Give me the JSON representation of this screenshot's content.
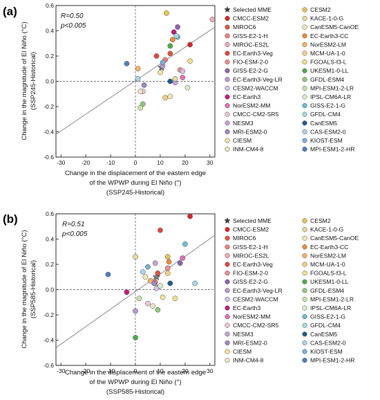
{
  "models": [
    {
      "name": "Selected MME",
      "color": "#3b3b3b",
      "marker": "star"
    },
    {
      "name": "CMCC-ESM2",
      "color": "#d62728"
    },
    {
      "name": "MIROC6",
      "color": "#e0553b"
    },
    {
      "name": "GISS-E2-1-H",
      "color": "#ef7f7f"
    },
    {
      "name": "MIROC-ES2L",
      "color": "#f6a8b8"
    },
    {
      "name": "EC-Earth3-Veg",
      "color": "#e9463f"
    },
    {
      "name": "FIO-ESM-2-0",
      "color": "#f28c8c"
    },
    {
      "name": "GISS-E2-2-G",
      "color": "#8e63b5"
    },
    {
      "name": "EC-Earth3-Veg-LR",
      "color": "#b99ad6"
    },
    {
      "name": "CESM2-WACCM",
      "color": "#d4c3ea"
    },
    {
      "name": "EC-Earth3",
      "color": "#c21b76"
    },
    {
      "name": "NorESM2-MM",
      "color": "#e46fb3"
    },
    {
      "name": "CMCC-CM2-SR5",
      "color": "#f4c2dc"
    },
    {
      "name": "NESM3",
      "color": "#c8a2d8"
    },
    {
      "name": "MRI-ESM2-0",
      "color": "#9f87c8"
    },
    {
      "name": "CIESM",
      "color": "#f7e3a1"
    },
    {
      "name": "INM-CM4-8",
      "color": "#ece6c8"
    },
    {
      "name": "CESM2",
      "color": "#e8c35a"
    },
    {
      "name": "KACE-1-0-G",
      "color": "#eadb9a"
    },
    {
      "name": "CanESM5-CanOE",
      "color": "#f2e9b6"
    },
    {
      "name": "EC-Earth3-CC",
      "color": "#f08c3c"
    },
    {
      "name": "NorESM2-LM",
      "color": "#f5b36b"
    },
    {
      "name": "MCM-UA-1-0",
      "color": "#f7cf8a"
    },
    {
      "name": "FGOALS-f3-L",
      "color": "#f5e08c"
    },
    {
      "name": "UKESM1-0-LL",
      "color": "#4cae4c"
    },
    {
      "name": "GFDL-ESM4",
      "color": "#8fc97a"
    },
    {
      "name": "MPI-ESM1-2-LR",
      "color": "#c3e6a8"
    },
    {
      "name": "IPSL-CM6A-LR",
      "color": "#d8efc8"
    },
    {
      "name": "GISS-E2-1-G",
      "color": "#6fbfd1"
    },
    {
      "name": "GFDL-CM4",
      "color": "#a6d9e6"
    },
    {
      "name": "CanESM5",
      "color": "#1f5c8c"
    },
    {
      "name": "CAS-ESM2-0",
      "color": "#b0d3ec"
    },
    {
      "name": "KIOST-ESM",
      "color": "#7eaedb"
    },
    {
      "name": "MPI-ESM1-2-HR",
      "color": "#4f7fc0"
    }
  ],
  "panels": [
    {
      "tag": "(a)",
      "r_text": "R=0.50",
      "p_text": "p<0.005",
      "ylabel": "Change in the magnitude of El Niño (°C)",
      "ylabel2": "(SSP245-Historical)",
      "xlabel1": "Change in the displacement of the eastern edge",
      "xlabel2": "of the WPWP during El Niño (°)",
      "xlabel3": "(SSP245-Historical)"
    },
    {
      "tag": "(b)",
      "r_text": "R=0.51",
      "p_text": "p<0.005",
      "ylabel": "Change in the magnitude of El Niño (°C)",
      "ylabel2": "(SSP585-Historical)",
      "xlabel1": "Change in the displacement of the eastern edge",
      "xlabel2": "of the WPWP during El Niño (°)",
      "xlabel3": "(SSP585-Historical)"
    }
  ],
  "chart_data": [
    {
      "type": "scatter",
      "title": "(a)",
      "xlabel": "Change in the displacement of the eastern edge of the WPWP during El Niño (°) (SSP245-Historical)",
      "ylabel": "Change in the magnitude of El Niño (°C) (SSP245-Historical)",
      "xlim": [
        -32,
        32
      ],
      "ylim": [
        -0.6,
        0.6
      ],
      "xticks": [
        -30,
        -20,
        -10,
        0,
        10,
        20,
        30
      ],
      "yticks": [
        -0.6,
        -0.4,
        -0.2,
        0,
        0.2,
        0.4,
        0.6
      ],
      "reference_lines": {
        "x": 0,
        "y": 0,
        "style": "dashed"
      },
      "fit_line": {
        "x": [
          -32,
          32
        ],
        "y": [
          -0.42,
          0.43
        ]
      },
      "annotations": [
        "R=0.50",
        "p<0.005"
      ],
      "series": [
        {
          "name": "Selected MME",
          "x": [
            10.5
          ],
          "y": [
            0.11
          ]
        },
        {
          "name": "CMCC-ESM2",
          "x": [
            22
          ],
          "y": [
            0.29
          ]
        },
        {
          "name": "MIROC6",
          "x": [
            14
          ],
          "y": [
            0.22
          ]
        },
        {
          "name": "GISS-E2-1-H",
          "x": [
            12
          ],
          "y": [
            0.17
          ]
        },
        {
          "name": "MIROC-ES2L",
          "x": [
            31
          ],
          "y": [
            0.49
          ]
        },
        {
          "name": "EC-Earth3-Veg",
          "x": [
            8.5
          ],
          "y": [
            0.2
          ]
        },
        {
          "name": "FIO-ESM-2-0",
          "x": [
            18
          ],
          "y": [
            0.09
          ]
        },
        {
          "name": "GISS-E2-2-G",
          "x": [
            17
          ],
          "y": [
            0.43
          ]
        },
        {
          "name": "EC-Earth3-Veg-LR",
          "x": [
            11
          ],
          "y": [
            0.12
          ]
        },
        {
          "name": "CESM2-WACCM",
          "x": [
            19
          ],
          "y": [
            0.08
          ]
        },
        {
          "name": "EC-Earth3",
          "x": [
            15.5
          ],
          "y": [
            0.39
          ]
        },
        {
          "name": "NorESM2-MM",
          "x": [
            19
          ],
          "y": [
            0.03
          ]
        },
        {
          "name": "CMCC-CM2-SR5",
          "x": [
            3
          ],
          "y": [
            -0.08
          ]
        },
        {
          "name": "NESM3",
          "x": [
            16
          ],
          "y": [
            -0.01
          ]
        },
        {
          "name": "MRI-ESM2-0",
          "x": [
            3.5
          ],
          "y": [
            -0.03
          ]
        },
        {
          "name": "CIESM",
          "x": [
            10
          ],
          "y": [
            0.07
          ]
        },
        {
          "name": "INM-CM4-8",
          "x": [
            2
          ],
          "y": [
            -0.08
          ]
        },
        {
          "name": "CESM2",
          "x": [
            12.5
          ],
          "y": [
            0.54
          ]
        },
        {
          "name": "KACE-1-0-G",
          "x": [
            16
          ],
          "y": [
            0.02
          ]
        },
        {
          "name": "CanESM5-CanOE",
          "x": [
            14
          ],
          "y": [
            -0.12
          ]
        },
        {
          "name": "EC-Earth3-CC",
          "x": [
            15
          ],
          "y": [
            0.33
          ]
        },
        {
          "name": "NorESM2-LM",
          "x": [
            1
          ],
          "y": [
            0.1
          ]
        },
        {
          "name": "MCM-UA-1-0",
          "x": [
            12
          ],
          "y": [
            -0.13
          ]
        },
        {
          "name": "FGOALS-f3-L",
          "x": [
            22
          ],
          "y": [
            0.16
          ]
        },
        {
          "name": "UKESM1-0-LL",
          "x": [
            14
          ],
          "y": [
            0.28
          ]
        },
        {
          "name": "GFDL-ESM4",
          "x": [
            3
          ],
          "y": [
            -0.18
          ]
        },
        {
          "name": "MPI-ESM1-2-LR",
          "x": [
            2
          ],
          "y": [
            -0.21
          ]
        },
        {
          "name": "IPSL-CM6A-LR",
          "x": [
            21
          ],
          "y": [
            -0.05
          ]
        },
        {
          "name": "GISS-E2-1-G",
          "x": [
            17
          ],
          "y": [
            0.35
          ]
        },
        {
          "name": "GFDL-CM4",
          "x": [
            16.5
          ],
          "y": [
            0.36
          ]
        },
        {
          "name": "CanESM5",
          "x": [
            14
          ],
          "y": [
            0.0
          ]
        },
        {
          "name": "CAS-ESM2-0",
          "x": [
            1
          ],
          "y": [
            0.02
          ]
        },
        {
          "name": "KIOST-ESM",
          "x": [
            11
          ],
          "y": [
            0.15
          ]
        },
        {
          "name": "MPI-ESM1-2-HR",
          "x": [
            -3.5
          ],
          "y": [
            0.14
          ]
        }
      ]
    },
    {
      "type": "scatter",
      "title": "(b)",
      "xlabel": "Change in the displacement of the eastern edge of the WPWP during El Niño (°) (SSP585-Historical)",
      "ylabel": "Change in the magnitude of El Niño (°C) (SSP585-Historical)",
      "xlim": [
        -32,
        32
      ],
      "ylim": [
        -0.6,
        0.6
      ],
      "xticks": [
        -30,
        -20,
        -10,
        0,
        10,
        20,
        30
      ],
      "yticks": [
        -0.6,
        -0.4,
        -0.2,
        0,
        0.2,
        0.4,
        0.6
      ],
      "reference_lines": {
        "x": 0,
        "y": 0,
        "style": "dashed"
      },
      "fit_line": {
        "x": [
          -32,
          32
        ],
        "y": [
          -0.46,
          0.43
        ]
      },
      "annotations": [
        "R=0.51",
        "p<0.005"
      ],
      "series": [
        {
          "name": "Selected MME",
          "x": [
            8.5
          ],
          "y": [
            0.1
          ]
        },
        {
          "name": "CMCC-ESM2",
          "x": [
            22
          ],
          "y": [
            0.58
          ]
        },
        {
          "name": "MIROC6",
          "x": [
            9
          ],
          "y": [
            0.13
          ]
        },
        {
          "name": "GISS-E2-1-H",
          "x": [
            8
          ],
          "y": [
            0.06
          ]
        },
        {
          "name": "MIROC-ES2L",
          "x": [
            9
          ],
          "y": [
            0.02
          ]
        },
        {
          "name": "EC-Earth3-Veg",
          "x": [
            10
          ],
          "y": [
            0.47
          ]
        },
        {
          "name": "FIO-ESM-2-0",
          "x": [
            13
          ],
          "y": [
            0.17
          ]
        },
        {
          "name": "GISS-E2-2-G",
          "x": [
            18
          ],
          "y": [
            0.21
          ]
        },
        {
          "name": "EC-Earth3-Veg-LR",
          "x": [
            0
          ],
          "y": [
            -0.17
          ]
        },
        {
          "name": "CESM2-WACCM",
          "x": [
            8.5
          ],
          "y": [
            0.01
          ]
        },
        {
          "name": "EC-Earth3",
          "x": [
            -3.5
          ],
          "y": [
            -0.02
          ]
        },
        {
          "name": "NorESM2-MM",
          "x": [
            19
          ],
          "y": [
            0.25
          ]
        },
        {
          "name": "CMCC-CM2-SR5",
          "x": [
            5
          ],
          "y": [
            -0.11
          ]
        },
        {
          "name": "NESM3",
          "x": [
            8
          ],
          "y": [
            0.21
          ]
        },
        {
          "name": "MRI-ESM2-0",
          "x": [
            7.5
          ],
          "y": [
            0.05
          ]
        },
        {
          "name": "CIESM",
          "x": [
            11
          ],
          "y": [
            -0.06
          ]
        },
        {
          "name": "INM-CM4-8",
          "x": [
            7
          ],
          "y": [
            -0.13
          ]
        },
        {
          "name": "CESM2",
          "x": [
            13
          ],
          "y": [
            0.26
          ]
        },
        {
          "name": "KACE-1-0-G",
          "x": [
            0
          ],
          "y": [
            0.26
          ]
        },
        {
          "name": "CanESM5-CanOE",
          "x": [
            4
          ],
          "y": [
            0.1
          ]
        },
        {
          "name": "EC-Earth3-CC",
          "x": [
            13.5
          ],
          "y": [
            0.22
          ]
        },
        {
          "name": "NorESM2-LM",
          "x": [
            6
          ],
          "y": [
            0.07
          ]
        },
        {
          "name": "MCM-UA-1-0",
          "x": [
            13
          ],
          "y": [
            0.13
          ]
        },
        {
          "name": "FGOALS-f3-L",
          "x": [
            16
          ],
          "y": [
            -0.07
          ]
        },
        {
          "name": "UKESM1-0-LL",
          "x": [
            0
          ],
          "y": [
            -0.38
          ]
        },
        {
          "name": "GFDL-ESM4",
          "x": [
            9
          ],
          "y": [
            -0.16
          ]
        },
        {
          "name": "MPI-ESM1-2-LR",
          "x": [
            1.5
          ],
          "y": [
            -0.07
          ]
        },
        {
          "name": "IPSL-CM6A-LR",
          "x": [
            10
          ],
          "y": [
            0.03
          ]
        },
        {
          "name": "GISS-E2-1-G",
          "x": [
            20
          ],
          "y": [
            0.36
          ]
        },
        {
          "name": "GFDL-CM4",
          "x": [
            24
          ],
          "y": [
            0.05
          ]
        },
        {
          "name": "CanESM5",
          "x": [
            14
          ],
          "y": [
            0.05
          ]
        },
        {
          "name": "CAS-ESM2-0",
          "x": [
            3
          ],
          "y": [
            0.14
          ]
        },
        {
          "name": "KIOST-ESM",
          "x": [
            5
          ],
          "y": [
            0.18
          ]
        },
        {
          "name": "MPI-ESM1-2-HR",
          "x": [
            -11
          ],
          "y": [
            0.12
          ]
        }
      ]
    }
  ]
}
